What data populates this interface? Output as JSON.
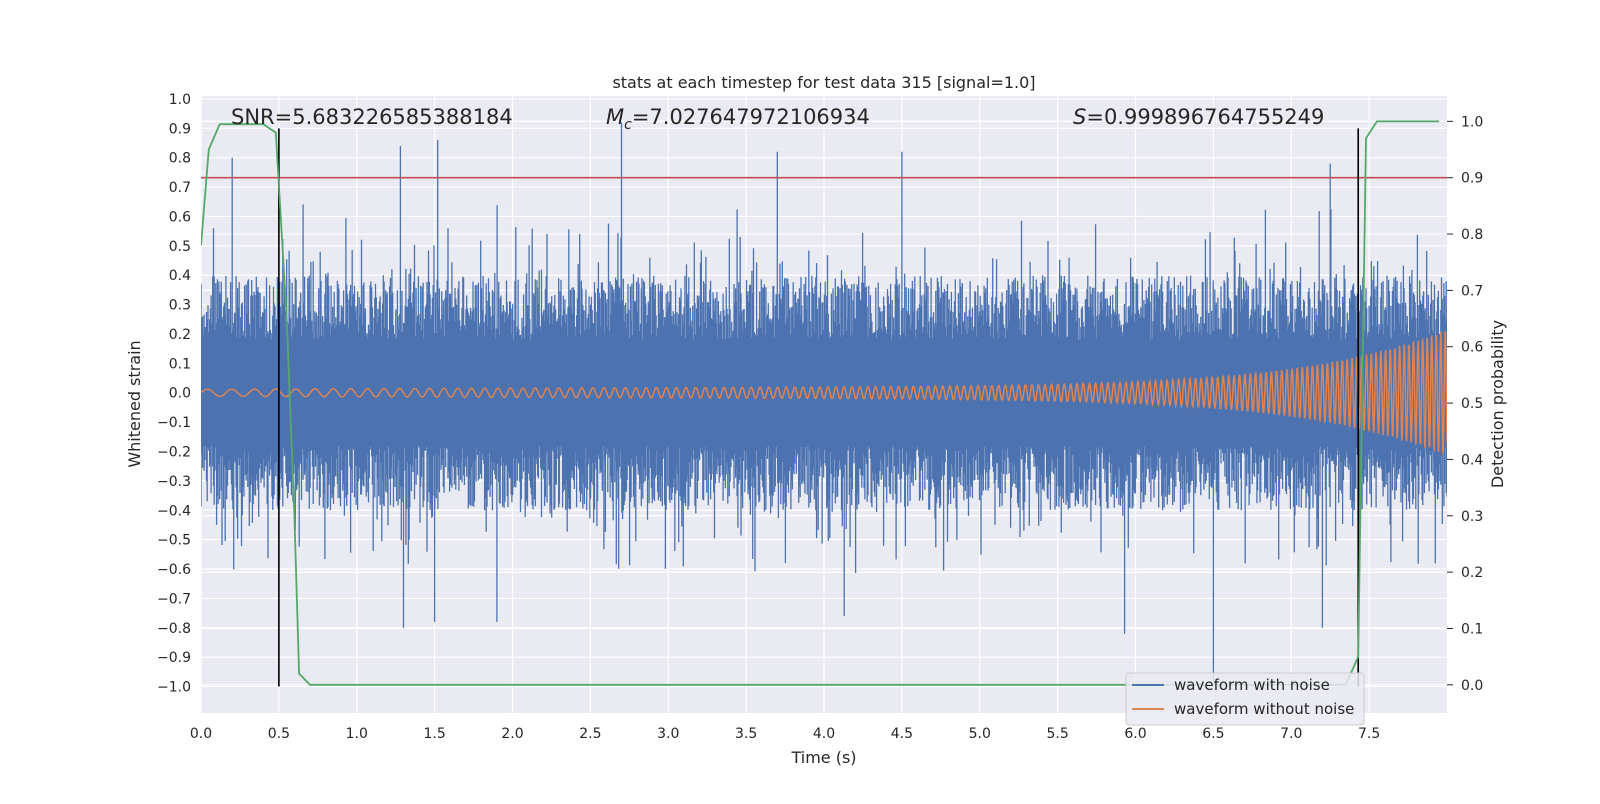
{
  "chart_data": {
    "type": "line",
    "title": "stats at each timestep for test data 315 [signal=1.0]",
    "xlabel": "Time (s)",
    "ylabel_left": "Whitened strain",
    "ylabel_right": "Detection probability",
    "xlim": [
      0.0,
      8.0
    ],
    "ylim_left": [
      -1.09,
      1.01
    ],
    "ylim_right": [
      -0.05,
      1.045
    ],
    "x_ticks": [
      "0.0",
      "0.5",
      "1.0",
      "1.5",
      "2.0",
      "2.5",
      "3.0",
      "3.5",
      "4.0",
      "4.5",
      "5.0",
      "5.5",
      "6.0",
      "6.5",
      "7.0",
      "7.5"
    ],
    "y_left_ticks": [
      "1.0",
      "0.9",
      "0.8",
      "0.7",
      "0.6",
      "0.5",
      "0.4",
      "0.3",
      "0.2",
      "0.1",
      "0.0",
      "−0.1",
      "−0.2",
      "−0.3",
      "−0.4",
      "−0.5",
      "−0.6",
      "−0.7",
      "−0.8",
      "−0.9",
      "−1.0"
    ],
    "y_right_ticks": [
      "1.0",
      "0.9",
      "0.8",
      "0.7",
      "0.6",
      "0.5",
      "0.4",
      "0.3",
      "0.2",
      "0.1",
      "0.0"
    ],
    "annotations": {
      "snr": "SNR=5.683226585388184",
      "mc_symbol": "M",
      "mc_sub": "c",
      "mc_value": "=7.027647972106934",
      "s_symbol": "S",
      "s_value": "=0.999896764755249"
    },
    "threshold": {
      "axis": "right",
      "value": 0.9,
      "color": "#c44e52"
    },
    "vertical_markers": [
      {
        "x": 0.5,
        "y_range": [
          -1.0,
          0.9
        ]
      },
      {
        "x": 7.43,
        "y_range": [
          -1.0,
          0.9
        ]
      }
    ],
    "series": [
      {
        "name": "waveform with noise",
        "axis": "left",
        "color": "#4c72b0",
        "description": "noisy whitened strain, approx. range -0.8 to 0.9",
        "peaks": [
          {
            "x": 0.2,
            "y": 0.8
          },
          {
            "x": 1.28,
            "y": 0.84
          },
          {
            "x": 1.52,
            "y": 0.86
          },
          {
            "x": 2.7,
            "y": 0.92
          },
          {
            "x": 3.7,
            "y": 0.82
          },
          {
            "x": 4.5,
            "y": 0.82
          },
          {
            "x": 7.25,
            "y": 0.78
          },
          {
            "x": 1.3,
            "y": -0.8
          },
          {
            "x": 1.5,
            "y": -0.78
          },
          {
            "x": 1.9,
            "y": -0.78
          },
          {
            "x": 4.13,
            "y": -0.76
          },
          {
            "x": 5.93,
            "y": -0.82
          },
          {
            "x": 6.5,
            "y": -0.98
          },
          {
            "x": 7.2,
            "y": -0.8
          }
        ]
      },
      {
        "name": "waveform without noise",
        "axis": "left",
        "color": "#dd8452",
        "description": "chirp signal with amplitude growing from ~0.01 to ~0.2 near t=8"
      },
      {
        "name": "detection probability",
        "axis": "right",
        "color": "#55a868",
        "x": [
          0.0,
          0.05,
          0.12,
          0.4,
          0.48,
          0.55,
          0.6,
          0.63,
          0.7,
          7.35,
          7.43,
          7.48,
          7.55,
          7.95
        ],
        "y": [
          0.78,
          0.95,
          0.995,
          0.995,
          0.98,
          0.65,
          0.3,
          0.02,
          0.0,
          0.0,
          0.05,
          0.97,
          1.0,
          1.0
        ]
      }
    ],
    "legend": {
      "position": "lower-right",
      "entries": [
        {
          "label": "waveform with noise",
          "color": "#4c72b0"
        },
        {
          "label": "waveform without noise",
          "color": "#dd8452"
        }
      ]
    },
    "grid": true
  }
}
